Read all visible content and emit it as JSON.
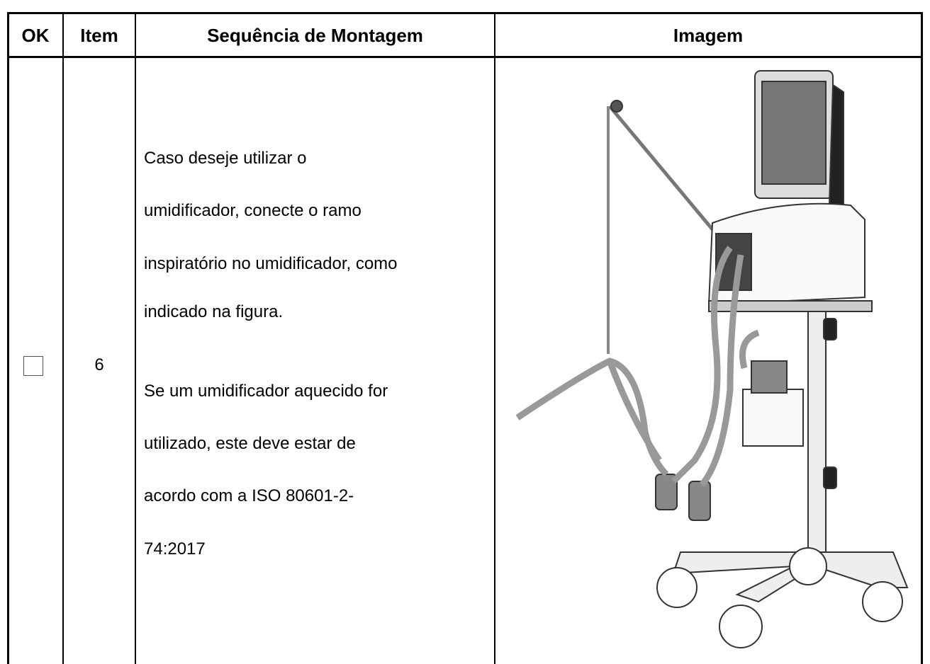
{
  "header": {
    "columns": [
      "OK",
      "Item",
      "Sequência de Montagem",
      "Imagem"
    ]
  },
  "table": {
    "rows": [
      {
        "item": "6",
        "paragraphs": [
          [
            "Caso deseje utilizar o",
            "umidificador, conecte o ramo",
            "inspiratório no umidificador, como",
            "indicado na figura."
          ],
          [
            "Se um umidificador aquecido for",
            "utilizado, este deve estar de",
            "acordo com a ISO 80601-2-",
            "74:2017"
          ]
        ]
      }
    ]
  }
}
